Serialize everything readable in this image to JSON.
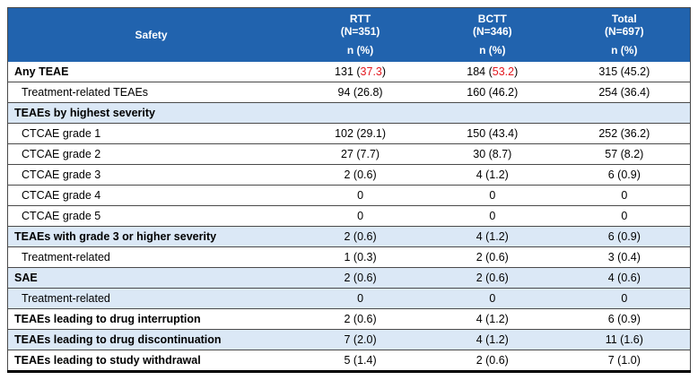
{
  "colors": {
    "header_bg": "#2163ae",
    "header_text": "#ffffff",
    "shaded_row_bg": "#dbe8f6",
    "highlight_red": "#e3171e"
  },
  "table": {
    "header": {
      "safety_label": "Safety",
      "subheader_label": "n (%)",
      "columns": [
        {
          "name": "RTT",
          "n_label": "(N=351)",
          "sub": "n (%)"
        },
        {
          "name": "BCTT",
          "n_label": "(N=346)",
          "sub": "n (%)"
        },
        {
          "name": "Total",
          "n_label": "(N=697)",
          "sub": "n (%)"
        }
      ]
    },
    "rows": [
      {
        "label": "Any TEAE",
        "bold": true,
        "indent": 0,
        "shaded": false,
        "cells": [
          {
            "text": "131 (37.3)",
            "red": "37.3"
          },
          {
            "text": "184 (53.2)",
            "red": "53.2"
          },
          "315 (45.2)"
        ]
      },
      {
        "label": "Treatment-related TEAEs",
        "bold": false,
        "indent": 1,
        "shaded": false,
        "cells": [
          "94 (26.8)",
          "160 (46.2)",
          "254 (36.4)"
        ]
      },
      {
        "label": "TEAEs by highest severity",
        "bold": true,
        "indent": 0,
        "shaded": true,
        "cells": [
          "",
          "",
          ""
        ]
      },
      {
        "label": "CTCAE grade 1",
        "bold": false,
        "indent": 1,
        "shaded": false,
        "cells": [
          "102 (29.1)",
          "150 (43.4)",
          "252 (36.2)"
        ]
      },
      {
        "label": "CTCAE grade 2",
        "bold": false,
        "indent": 1,
        "shaded": false,
        "cells": [
          "27 (7.7)",
          "30 (8.7)",
          "57 (8.2)"
        ]
      },
      {
        "label": "CTCAE grade 3",
        "bold": false,
        "indent": 1,
        "shaded": false,
        "cells": [
          "2 (0.6)",
          "4 (1.2)",
          "6 (0.9)"
        ]
      },
      {
        "label": "CTCAE grade 4",
        "bold": false,
        "indent": 1,
        "shaded": false,
        "cells": [
          "0",
          "0",
          "0"
        ]
      },
      {
        "label": "CTCAE grade 5",
        "bold": false,
        "indent": 1,
        "shaded": false,
        "cells": [
          "0",
          "0",
          "0"
        ]
      },
      {
        "label": "TEAEs with grade 3 or higher severity",
        "bold": true,
        "indent": 0,
        "shaded": true,
        "cells": [
          "2 (0.6)",
          "4 (1.2)",
          "6 (0.9)"
        ]
      },
      {
        "label": "Treatment-related",
        "bold": false,
        "indent": 1,
        "shaded": false,
        "cells": [
          "1 (0.3)",
          "2 (0.6)",
          "3 (0.4)"
        ]
      },
      {
        "label": "SAE",
        "bold": true,
        "indent": 0,
        "shaded": true,
        "cells": [
          "2 (0.6)",
          "2 (0.6)",
          "4 (0.6)"
        ]
      },
      {
        "label": "Treatment-related",
        "bold": false,
        "indent": 1,
        "shaded": true,
        "cells": [
          "0",
          "0",
          "0"
        ]
      },
      {
        "label": "TEAEs leading to drug interruption",
        "bold": true,
        "indent": 0,
        "shaded": false,
        "cells": [
          "2 (0.6)",
          "4 (1.2)",
          "6 (0.9)"
        ]
      },
      {
        "label": "TEAEs leading to drug discontinuation",
        "bold": true,
        "indent": 0,
        "shaded": true,
        "cells": [
          "7 (2.0)",
          "4 (1.2)",
          "11 (1.6)"
        ]
      },
      {
        "label": "TEAEs leading to study withdrawal",
        "bold": true,
        "indent": 0,
        "shaded": false,
        "cells": [
          "5 (1.4)",
          "2 (0.6)",
          "7 (1.0)"
        ]
      }
    ]
  }
}
